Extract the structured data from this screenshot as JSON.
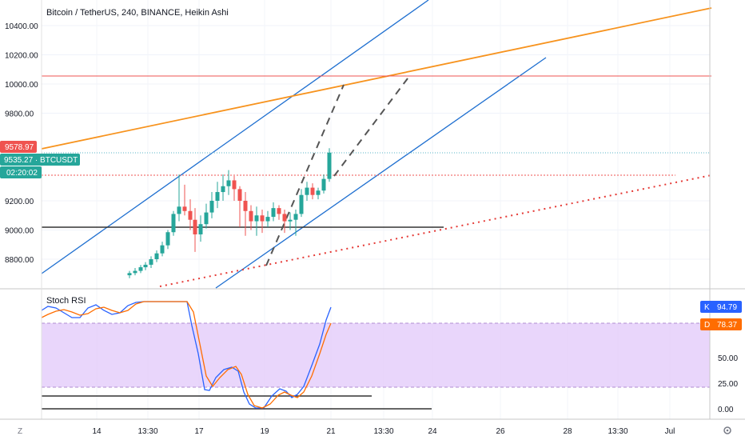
{
  "chart_data": [
    {
      "type": "candlestick",
      "title": "Bitcoin / TetherUS, 240, BINANCE, Heikin Ashi",
      "symbol_label": "BTCUSDT",
      "ylim": [
        8680,
        10560
      ],
      "y_ticks": [
        "10400.00",
        "10200.00",
        "10000.00",
        "9800.00",
        "9200.00",
        "9000.00",
        "8800.00"
      ],
      "x_ticks": [
        "14",
        "13:30",
        "17",
        "19",
        "21",
        "24",
        "13:30",
        "26",
        "28",
        "13:30",
        "Jul"
      ],
      "price_tags": [
        {
          "text": "9578.97",
          "price": 9578.97,
          "color": "#ef5350"
        },
        {
          "text": "9535.27 · BTCUSDT",
          "price": 9535.27,
          "color": "#26a69a"
        },
        {
          "text": "02:20:02",
          "price": 9420,
          "color": "#26a69a"
        }
      ],
      "candles": [
        {
          "o": 8690,
          "h": 8720,
          "l": 8670,
          "c": 8705,
          "x": 162
        },
        {
          "o": 8705,
          "h": 8740,
          "l": 8690,
          "c": 8720,
          "x": 169
        },
        {
          "o": 8720,
          "h": 8760,
          "l": 8705,
          "c": 8745,
          "x": 176
        },
        {
          "o": 8745,
          "h": 8780,
          "l": 8725,
          "c": 8762,
          "x": 182
        },
        {
          "o": 8762,
          "h": 8820,
          "l": 8740,
          "c": 8800,
          "x": 189
        },
        {
          "o": 8800,
          "h": 8860,
          "l": 8780,
          "c": 8840,
          "x": 196
        },
        {
          "o": 8840,
          "h": 8920,
          "l": 8820,
          "c": 8895,
          "x": 203
        },
        {
          "o": 8895,
          "h": 9000,
          "l": 8870,
          "c": 8985,
          "x": 210
        },
        {
          "o": 8985,
          "h": 9130,
          "l": 8960,
          "c": 9110,
          "x": 217
        },
        {
          "o": 9110,
          "h": 9380,
          "l": 9060,
          "c": 9160,
          "x": 224
        },
        {
          "o": 9160,
          "h": 9310,
          "l": 9100,
          "c": 9130,
          "x": 231
        },
        {
          "o": 9130,
          "h": 9210,
          "l": 9000,
          "c": 9070,
          "x": 238
        },
        {
          "o": 9070,
          "h": 9150,
          "l": 8850,
          "c": 8970,
          "x": 244
        },
        {
          "o": 8970,
          "h": 9100,
          "l": 8920,
          "c": 9040,
          "x": 251
        },
        {
          "o": 9040,
          "h": 9180,
          "l": 9010,
          "c": 9120,
          "x": 258
        },
        {
          "o": 9120,
          "h": 9260,
          "l": 9080,
          "c": 9200,
          "x": 265
        },
        {
          "o": 9200,
          "h": 9330,
          "l": 9150,
          "c": 9260,
          "x": 272
        },
        {
          "o": 9260,
          "h": 9380,
          "l": 9200,
          "c": 9300,
          "x": 279
        },
        {
          "o": 9300,
          "h": 9410,
          "l": 9240,
          "c": 9340,
          "x": 286
        },
        {
          "o": 9340,
          "h": 9370,
          "l": 9200,
          "c": 9280,
          "x": 293
        },
        {
          "o": 9280,
          "h": 9300,
          "l": 9020,
          "c": 9200,
          "x": 300
        },
        {
          "o": 9200,
          "h": 9260,
          "l": 8960,
          "c": 9130,
          "x": 307
        },
        {
          "o": 9130,
          "h": 9170,
          "l": 9000,
          "c": 9060,
          "x": 314
        },
        {
          "o": 9060,
          "h": 9160,
          "l": 8960,
          "c": 9100,
          "x": 321
        },
        {
          "o": 9100,
          "h": 9140,
          "l": 8980,
          "c": 9060,
          "x": 328
        },
        {
          "o": 9060,
          "h": 9130,
          "l": 9020,
          "c": 9090,
          "x": 335
        },
        {
          "o": 9090,
          "h": 9190,
          "l": 9060,
          "c": 9150,
          "x": 342
        },
        {
          "o": 9150,
          "h": 9170,
          "l": 9070,
          "c": 9110,
          "x": 349
        },
        {
          "o": 9110,
          "h": 9140,
          "l": 8980,
          "c": 9060,
          "x": 356
        },
        {
          "o": 9060,
          "h": 9120,
          "l": 9000,
          "c": 9070,
          "x": 363
        },
        {
          "o": 9070,
          "h": 9140,
          "l": 8960,
          "c": 9110,
          "x": 370
        },
        {
          "o": 9110,
          "h": 9280,
          "l": 9090,
          "c": 9240,
          "x": 377
        },
        {
          "o": 9240,
          "h": 9330,
          "l": 9200,
          "c": 9290,
          "x": 384
        },
        {
          "o": 9290,
          "h": 9320,
          "l": 9210,
          "c": 9240,
          "x": 391
        },
        {
          "o": 9240,
          "h": 9290,
          "l": 9210,
          "c": 9270,
          "x": 398
        },
        {
          "o": 9270,
          "h": 9380,
          "l": 9250,
          "c": 9350,
          "x": 405
        },
        {
          "o": 9350,
          "h": 9560,
          "l": 9330,
          "c": 9530,
          "x": 412
        }
      ]
    },
    {
      "type": "line",
      "title": "Stoch RSI",
      "ylim": [
        -5,
        110
      ],
      "y_ticks": [
        "50.00",
        "25.00",
        "0.00"
      ],
      "band": [
        20,
        80
      ],
      "series": [
        {
          "name": "K",
          "last": "94.79",
          "color": "#2962ff"
        },
        {
          "name": "D",
          "last": "78.37",
          "color": "#ff6d00"
        }
      ]
    }
  ],
  "toolbar": {
    "zoom_label": "Z",
    "settings_icon": "gear-icon"
  }
}
